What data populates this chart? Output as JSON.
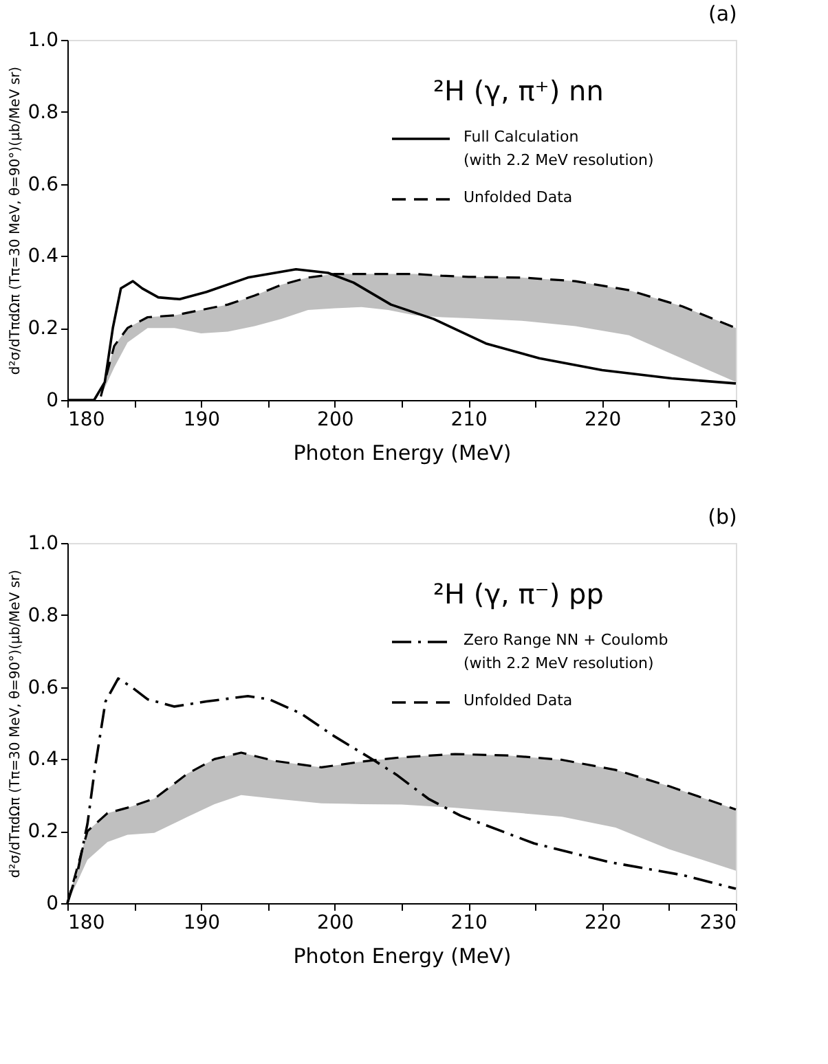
{
  "chart_data": [
    {
      "type": "line",
      "title": "(a)",
      "xlabel": "Photon Energy (MeV)",
      "ylabel": "d²σ/dTπdΩπ (Tπ=30 MeV, θ=90°)(μb/MeV sr)",
      "annotations": [
        "²H (γ, π⁺) nn"
      ],
      "xlim": [
        180,
        230
      ],
      "xticks": [
        180,
        {
          "value": 185,
          "label": null
        },
        190,
        {
          "value": 195,
          "label": null
        },
        200,
        {
          "value": 205,
          "label": null
        },
        210,
        {
          "value": 215,
          "label": null
        },
        220,
        {
          "value": 225,
          "label": null
        },
        230
      ],
      "ylim": [
        0,
        1
      ],
      "yticks": [
        0,
        0.2,
        0.4,
        0.6,
        0.8,
        {
          "value": 1,
          "label": "1.0"
        }
      ],
      "grid": false,
      "legend": "top right",
      "series": [
        {
          "name": "Full Calculation\n(with 2.2 MeV resolution)",
          "type": "line",
          "color": "#000000",
          "line_style": "solid",
          "x": [
            180,
            182,
            182.8,
            183.4,
            184,
            184.9,
            185.6,
            186.8,
            188.4,
            190.4,
            193.5,
            197.1,
            199.5,
            201.4,
            204.2,
            207.4,
            211.3,
            215.3,
            220,
            225.2,
            230
          ],
          "values": [
            0,
            0,
            0.05,
            0.2,
            0.31,
            0.33,
            0.31,
            0.285,
            0.28,
            0.3,
            0.34,
            0.363,
            0.353,
            0.326,
            0.265,
            0.225,
            0.157,
            0.116,
            0.083,
            0.06,
            0.046
          ]
        },
        {
          "name": "Unfolded Data",
          "type": "line",
          "color": "#000000",
          "line_style": "dashed",
          "x": [
            182.5,
            183.5,
            184.5,
            186,
            188,
            190,
            192,
            194,
            196,
            198,
            200,
            202,
            204,
            206,
            208,
            210,
            214,
            218,
            222,
            226,
            230
          ],
          "values": [
            0.01,
            0.15,
            0.2,
            0.23,
            0.235,
            0.25,
            0.265,
            0.29,
            0.32,
            0.34,
            0.35,
            0.35,
            0.35,
            0.35,
            0.345,
            0.342,
            0.34,
            0.33,
            0.305,
            0.26,
            0.2
          ],
          "lower": [
            0.01,
            0.09,
            0.16,
            0.2,
            0.2,
            0.185,
            0.19,
            0.205,
            0.225,
            0.25,
            0.255,
            0.258,
            0.25,
            0.235,
            0.23,
            0.227,
            0.22,
            0.205,
            0.18,
            0.115,
            0.05
          ],
          "upper": [
            0.01,
            0.15,
            0.2,
            0.23,
            0.235,
            0.25,
            0.265,
            0.29,
            0.32,
            0.34,
            0.35,
            0.35,
            0.35,
            0.35,
            0.345,
            0.342,
            0.34,
            0.33,
            0.305,
            0.26,
            0.2
          ]
        }
      ]
    },
    {
      "type": "line",
      "title": "(b)",
      "xlabel": "Photon Energy (MeV)",
      "ylabel": "d²σ/dTπdΩπ (Tπ=30 MeV, θ=90°)(μb/MeV sr)",
      "annotations": [
        "²H (γ, π⁻) pp"
      ],
      "xlim": [
        180,
        230
      ],
      "xticks": [
        180,
        {
          "value": 185,
          "label": null
        },
        190,
        {
          "value": 195,
          "label": null
        },
        200,
        {
          "value": 205,
          "label": null
        },
        210,
        {
          "value": 215,
          "label": null
        },
        220,
        {
          "value": 225,
          "label": null
        },
        230
      ],
      "ylim": [
        0,
        1
      ],
      "yticks": [
        0,
        0.2,
        0.4,
        0.6,
        0.8,
        {
          "value": 1,
          "label": "1.0"
        }
      ],
      "grid": false,
      "legend": "top right",
      "series": [
        {
          "name": "Zero Range NN + Coulomb\n(with 2.2 MeV resolution)",
          "type": "line",
          "color": "#000000",
          "line_style": "dashdot",
          "x": [
            180,
            180.8,
            181.5,
            182.06,
            182.85,
            183.8,
            184.8,
            186,
            188,
            190.4,
            193.5,
            195.1,
            197.5,
            199.9,
            203,
            204.6,
            207,
            209.4,
            214.9,
            220.4,
            226,
            230
          ],
          "values": [
            0,
            0.094,
            0.22,
            0.375,
            0.56,
            0.624,
            0.6,
            0.566,
            0.546,
            0.56,
            0.575,
            0.566,
            0.526,
            0.465,
            0.395,
            0.357,
            0.29,
            0.243,
            0.166,
            0.115,
            0.078,
            0.04
          ]
        },
        {
          "name": "Unfolded Data",
          "type": "line",
          "color": "#000000",
          "line_style": "dashed",
          "x": [
            180,
            181.5,
            183,
            184.5,
            186.5,
            189,
            191,
            193,
            195.5,
            199,
            202,
            205,
            209,
            213,
            217,
            221,
            225,
            230
          ],
          "values": [
            0,
            0.2,
            0.25,
            0.265,
            0.29,
            0.36,
            0.4,
            0.418,
            0.395,
            0.377,
            0.393,
            0.405,
            0.414,
            0.41,
            0.398,
            0.37,
            0.325,
            0.26
          ],
          "lower": [
            0,
            0.12,
            0.17,
            0.19,
            0.195,
            0.24,
            0.275,
            0.3,
            0.29,
            0.277,
            0.275,
            0.274,
            0.265,
            0.253,
            0.24,
            0.21,
            0.15,
            0.09
          ],
          "upper": [
            0,
            0.2,
            0.25,
            0.265,
            0.29,
            0.36,
            0.4,
            0.418,
            0.395,
            0.377,
            0.393,
            0.405,
            0.414,
            0.41,
            0.398,
            0.37,
            0.325,
            0.26
          ]
        }
      ]
    }
  ]
}
